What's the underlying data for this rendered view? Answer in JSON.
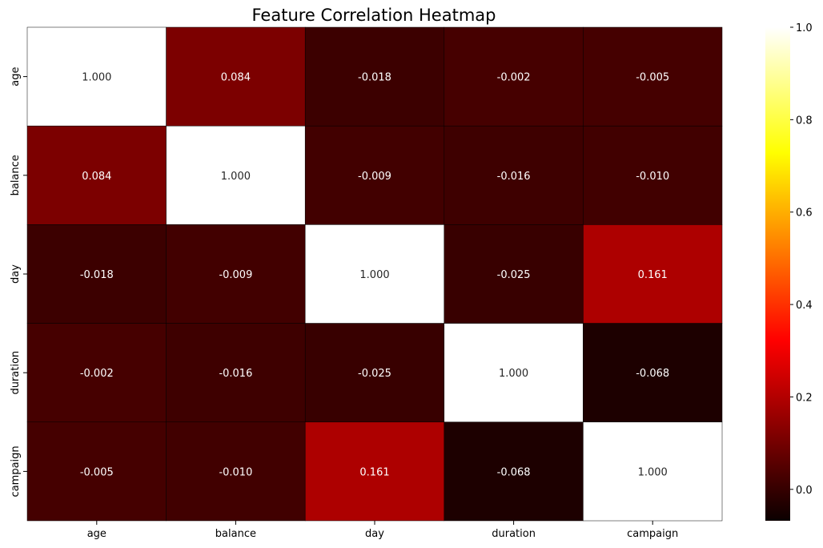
{
  "chart_data": {
    "type": "heatmap",
    "title": "Feature Correlation Heatmap",
    "xlabel": "",
    "ylabel": "",
    "x_labels": [
      "age",
      "balance",
      "day",
      "duration",
      "campaign"
    ],
    "y_labels": [
      "age",
      "balance",
      "day",
      "duration",
      "campaign"
    ],
    "matrix": [
      [
        1.0,
        0.084,
        -0.018,
        -0.002,
        -0.005
      ],
      [
        0.084,
        1.0,
        -0.009,
        -0.016,
        -0.01
      ],
      [
        -0.018,
        -0.009,
        1.0,
        -0.025,
        0.161
      ],
      [
        -0.002,
        -0.016,
        -0.025,
        1.0,
        -0.068
      ],
      [
        -0.005,
        -0.01,
        0.161,
        -0.068,
        1.0
      ]
    ],
    "cell_labels": [
      [
        "1.000",
        "0.084",
        "-0.018",
        "-0.002",
        "-0.005"
      ],
      [
        "0.084",
        "1.000",
        "-0.009",
        "-0.016",
        "-0.010"
      ],
      [
        "-0.018",
        "-0.009",
        "1.000",
        "-0.025",
        "0.161"
      ],
      [
        "-0.002",
        "-0.016",
        "-0.025",
        "1.000",
        "-0.068"
      ],
      [
        "-0.005",
        "-0.010",
        "0.161",
        "-0.068",
        "1.000"
      ]
    ],
    "colormap": "hot",
    "color_range": [
      -0.068,
      1.0
    ],
    "colorbar": {
      "ticks": [
        0.0,
        0.2,
        0.4,
        0.6,
        0.8,
        1.0
      ],
      "tick_labels": [
        "0.0",
        "0.2",
        "0.4",
        "0.6",
        "0.8",
        "1.0"
      ],
      "placement": "right"
    },
    "grid": false
  }
}
